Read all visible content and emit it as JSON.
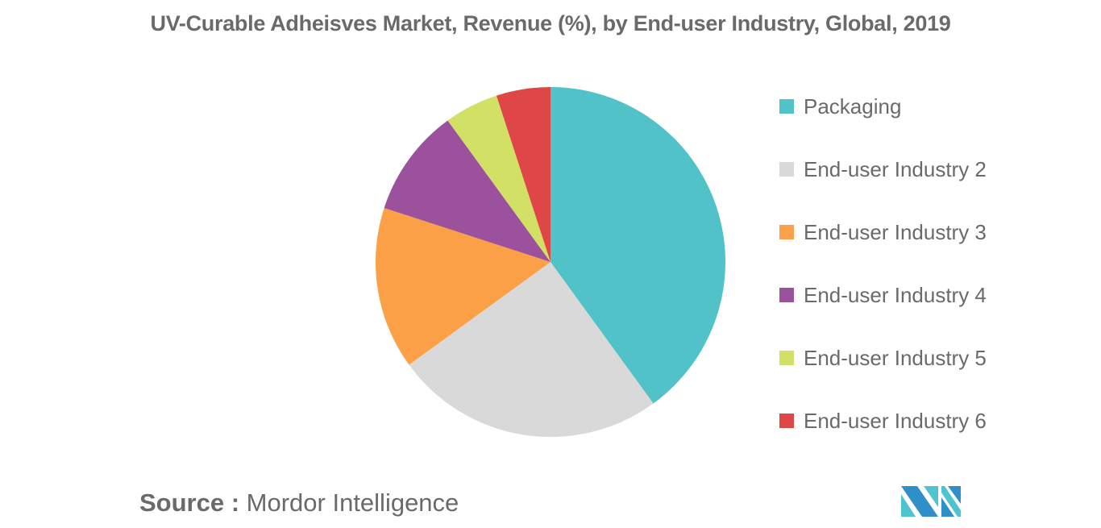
{
  "title": "UV-Curable Adheisves Market, Revenue (%), by End-user Industry, Global, 2019",
  "legend": [
    {
      "label": "Packaging",
      "color": "#52c2c9"
    },
    {
      "label": "End-user Industry 2",
      "color": "#d9d9d9"
    },
    {
      "label": "End-user Industry 3",
      "color": "#fba047"
    },
    {
      "label": "End-user Industry 4",
      "color": "#9c519d"
    },
    {
      "label": "End-user Industry 5",
      "color": "#d2e066"
    },
    {
      "label": "End-user Industry 6",
      "color": "#df4646"
    }
  ],
  "source": {
    "key": "Source :",
    "value": "Mordor Intelligence"
  },
  "chart_data": {
    "type": "pie",
    "title": "UV-Curable Adheisves Market, Revenue (%), by End-user Industry, Global, 2019",
    "categories": [
      "Packaging",
      "End-user Industry 2",
      "End-user Industry 3",
      "End-user Industry 4",
      "End-user Industry 5",
      "End-user Industry 6"
    ],
    "values": [
      40,
      25,
      15,
      10,
      5,
      5
    ],
    "colors": [
      "#52c2c9",
      "#d9d9d9",
      "#fba047",
      "#9c519d",
      "#d2e066",
      "#df4646"
    ],
    "start_angle_deg": 0,
    "direction": "clockwise",
    "legend_position": "right",
    "unit": "%"
  }
}
